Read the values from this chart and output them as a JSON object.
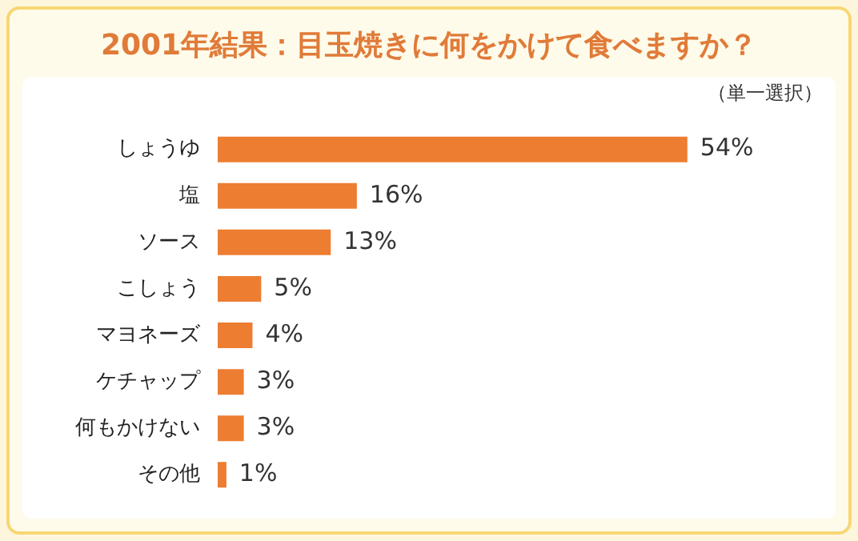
{
  "chart_data": {
    "type": "bar",
    "orientation": "horizontal",
    "title": "2001年結果：目玉焼きに何をかけて食べますか？",
    "subtitle": "（単一選択）",
    "categories": [
      "しょうゆ",
      "塩",
      "ソース",
      "こしょう",
      "マヨネーズ",
      "ケチャップ",
      "何もかけない",
      "その他"
    ],
    "values": [
      54,
      16,
      13,
      5,
      4,
      3,
      3,
      1
    ],
    "value_labels": [
      "54%",
      "16%",
      "13%",
      "5%",
      "4%",
      "3%",
      "3%",
      "1%"
    ],
    "color": "#ed7d31",
    "grid": false,
    "legend": false,
    "tick_labels": "y"
  }
}
